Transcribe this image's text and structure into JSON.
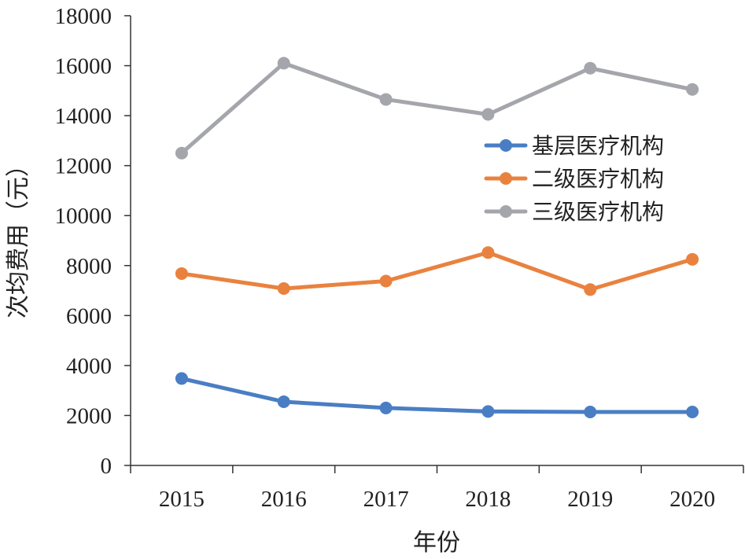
{
  "chart_data": {
    "type": "line",
    "title": "",
    "xlabel": "年份",
    "ylabel": "次均费用（元）",
    "categories": [
      "2015",
      "2016",
      "2017",
      "2018",
      "2019",
      "2020"
    ],
    "ylim": [
      0,
      18000
    ],
    "yticks": [
      "0",
      "2000",
      "4000",
      "6000",
      "8000",
      "10000",
      "12000",
      "14000",
      "16000",
      "18000"
    ],
    "grid": false,
    "legend_position": "right",
    "series": [
      {
        "name": "基层医疗机构",
        "color": "#4a7ec4",
        "values": [
          3480,
          2550,
          2300,
          2160,
          2140,
          2140
        ]
      },
      {
        "name": "二级医疗机构",
        "color": "#e9823f",
        "values": [
          7680,
          7080,
          7380,
          8520,
          7040,
          8250
        ]
      },
      {
        "name": "三级医疗机构",
        "color": "#a4a6ab",
        "values": [
          12500,
          16100,
          14650,
          14050,
          15900,
          15050
        ]
      }
    ]
  }
}
